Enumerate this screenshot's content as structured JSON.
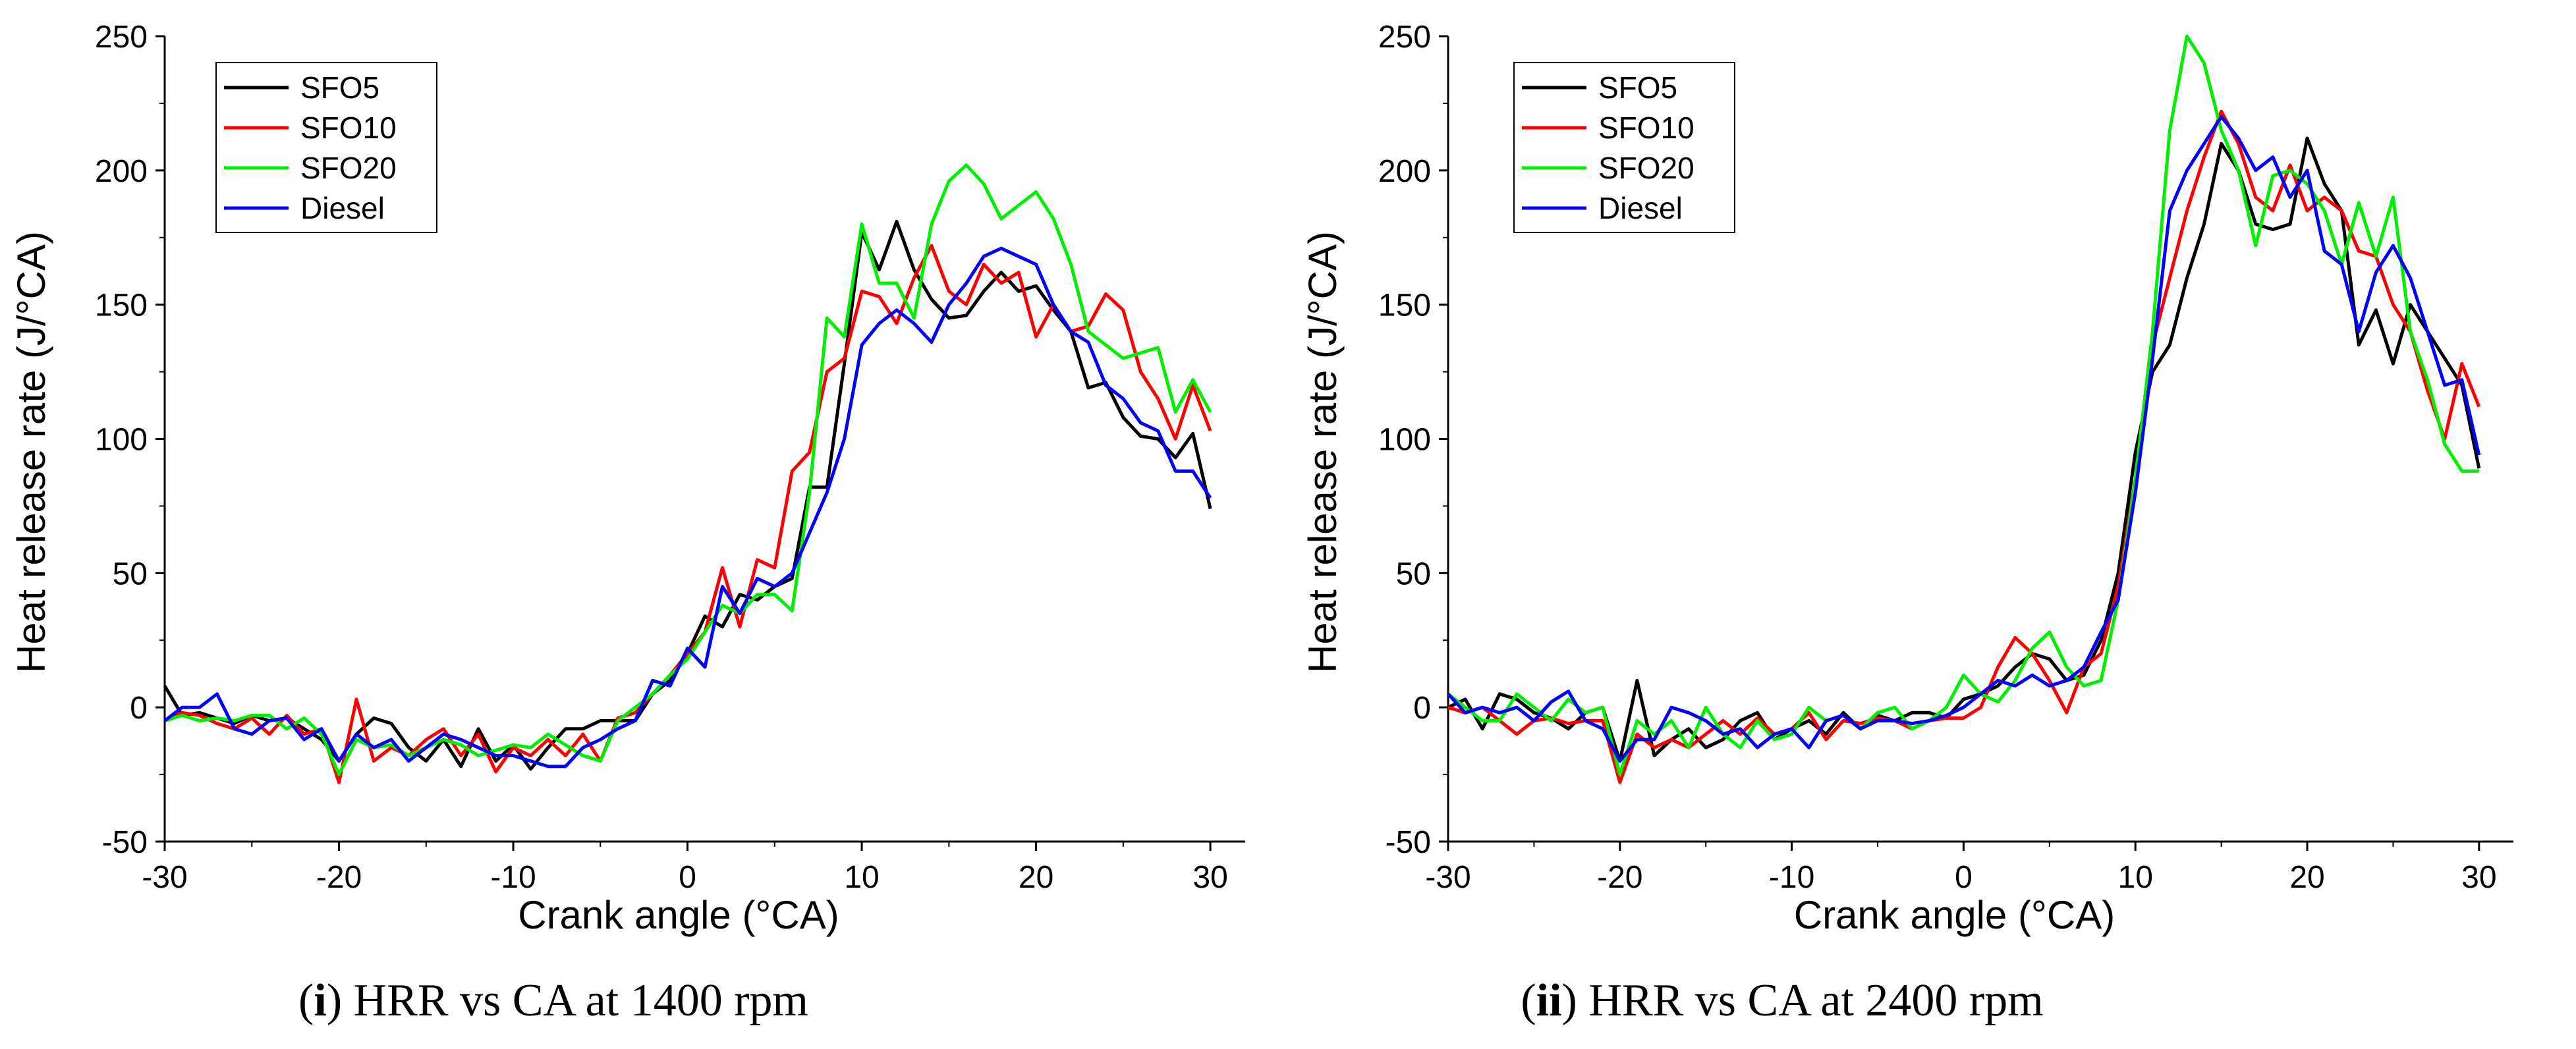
{
  "chart_data": [
    {
      "type": "line",
      "caption": {
        "label": "i",
        "text": ") HRR vs CA at 1400 rpm"
      },
      "xlabel": "Crank angle (°CA)",
      "ylabel": "Heat release rate (J/°CA)",
      "xlim": [
        -30,
        32
      ],
      "ylim": [
        -50,
        250
      ],
      "xticks": [
        -30,
        -20,
        -10,
        0,
        10,
        20,
        30
      ],
      "yticks": [
        -50,
        0,
        50,
        100,
        150,
        200,
        250
      ],
      "legend_position": "top-left",
      "series": [
        {
          "name": "SFO5",
          "color": "#000000",
          "x": [
            -30,
            -29,
            -28,
            -27,
            -26,
            -25,
            -24,
            -23,
            -22,
            -21,
            -20,
            -19,
            -18,
            -17,
            -16,
            -15,
            -14,
            -13,
            -12,
            -11,
            -10,
            -9,
            -8,
            -7,
            -6,
            -5,
            -4,
            -3,
            -2,
            -1,
            0,
            1,
            2,
            3,
            4,
            5,
            6,
            7,
            8,
            9,
            10,
            11,
            12,
            13,
            14,
            15,
            16,
            17,
            18,
            19,
            20,
            21,
            22,
            23,
            24,
            25,
            26,
            27,
            28,
            29,
            30
          ],
          "y": [
            8,
            -3,
            -2,
            -4,
            -6,
            -3,
            -5,
            -4,
            -8,
            -12,
            -20,
            -10,
            -4,
            -6,
            -15,
            -20,
            -12,
            -22,
            -8,
            -20,
            -14,
            -23,
            -15,
            -8,
            -8,
            -5,
            -5,
            -5,
            5,
            10,
            20,
            34,
            30,
            42,
            40,
            45,
            48,
            82,
            82,
            128,
            177,
            163,
            181,
            163,
            152,
            145,
            146,
            155,
            162,
            155,
            157,
            148,
            140,
            119,
            121,
            108,
            101,
            100,
            93,
            102,
            74
          ]
        },
        {
          "name": "SFO10",
          "color": "#ff0000",
          "x": [
            -30,
            -29,
            -28,
            -27,
            -26,
            -25,
            -24,
            -23,
            -22,
            -21,
            -20,
            -19,
            -18,
            -17,
            -16,
            -15,
            -14,
            -13,
            -12,
            -11,
            -10,
            -9,
            -8,
            -7,
            -6,
            -5,
            -4,
            -3,
            -2,
            -1,
            0,
            1,
            2,
            3,
            4,
            5,
            6,
            7,
            8,
            9,
            10,
            11,
            12,
            13,
            14,
            15,
            16,
            17,
            18,
            19,
            20,
            21,
            22,
            23,
            24,
            25,
            26,
            27,
            28,
            29,
            30
          ],
          "y": [
            -5,
            -2,
            -3,
            -6,
            -8,
            -4,
            -10,
            -3,
            -10,
            -8,
            -28,
            3,
            -20,
            -15,
            -18,
            -12,
            -8,
            -18,
            -10,
            -24,
            -15,
            -18,
            -12,
            -18,
            -10,
            -20,
            -4,
            -2,
            5,
            12,
            20,
            28,
            52,
            30,
            55,
            52,
            88,
            95,
            125,
            130,
            155,
            153,
            143,
            160,
            172,
            155,
            150,
            165,
            158,
            162,
            138,
            150,
            140,
            142,
            154,
            148,
            125,
            115,
            100,
            120,
            103
          ]
        },
        {
          "name": "SFO20",
          "color": "#00ee00",
          "x": [
            -30,
            -29,
            -28,
            -27,
            -26,
            -25,
            -24,
            -23,
            -22,
            -21,
            -20,
            -19,
            -18,
            -17,
            -16,
            -15,
            -14,
            -13,
            -12,
            -11,
            -10,
            -9,
            -8,
            -7,
            -6,
            -5,
            -4,
            -3,
            -2,
            -1,
            0,
            1,
            2,
            3,
            4,
            5,
            6,
            7,
            8,
            9,
            10,
            11,
            12,
            13,
            14,
            15,
            16,
            17,
            18,
            19,
            20,
            21,
            22,
            23,
            24,
            25,
            26,
            27,
            28,
            29,
            30
          ],
          "y": [
            -5,
            -3,
            -5,
            -4,
            -5,
            -3,
            -3,
            -8,
            -4,
            -10,
            -25,
            -12,
            -15,
            -14,
            -18,
            -15,
            -12,
            -14,
            -18,
            -16,
            -14,
            -15,
            -10,
            -14,
            -18,
            -20,
            -5,
            0,
            5,
            12,
            18,
            28,
            38,
            35,
            42,
            42,
            36,
            80,
            145,
            138,
            180,
            158,
            158,
            145,
            180,
            196,
            202,
            195,
            182,
            187,
            192,
            182,
            165,
            140,
            135,
            130,
            132,
            134,
            110,
            122,
            110
          ]
        },
        {
          "name": "Diesel",
          "color": "#0000ff",
          "x": [
            -30,
            -29,
            -28,
            -27,
            -26,
            -25,
            -24,
            -23,
            -22,
            -21,
            -20,
            -19,
            -18,
            -17,
            -16,
            -15,
            -14,
            -13,
            -12,
            -11,
            -10,
            -9,
            -8,
            -7,
            -6,
            -5,
            -4,
            -3,
            -2,
            -1,
            0,
            1,
            2,
            3,
            4,
            5,
            6,
            7,
            8,
            9,
            10,
            11,
            12,
            13,
            14,
            15,
            16,
            17,
            18,
            19,
            20,
            21,
            22,
            23,
            24,
            25,
            26,
            27,
            28,
            29,
            30
          ],
          "y": [
            -5,
            0,
            0,
            5,
            -8,
            -10,
            -5,
            -4,
            -12,
            -8,
            -20,
            -10,
            -15,
            -12,
            -20,
            -15,
            -10,
            -12,
            -15,
            -18,
            -18,
            -20,
            -22,
            -22,
            -15,
            -12,
            -8,
            -5,
            10,
            8,
            22,
            15,
            45,
            35,
            48,
            45,
            50,
            65,
            80,
            100,
            135,
            143,
            148,
            143,
            136,
            150,
            158,
            168,
            171,
            168,
            165,
            150,
            140,
            136,
            120,
            115,
            106,
            103,
            88,
            88,
            78
          ]
        }
      ]
    },
    {
      "type": "line",
      "caption": {
        "label": "ii",
        "text": ") HRR vs CA at 2400 rpm"
      },
      "xlabel": "Crank angle (°CA)",
      "ylabel": "Heat release rate (J/°CA)",
      "xlim": [
        -30,
        32
      ],
      "ylim": [
        -50,
        250
      ],
      "xticks": [
        -30,
        -20,
        -10,
        0,
        10,
        20,
        30
      ],
      "yticks": [
        -50,
        0,
        50,
        100,
        150,
        200,
        250
      ],
      "legend_position": "top-left",
      "series": [
        {
          "name": "SFO5",
          "color": "#000000",
          "x": [
            -30,
            -29,
            -28,
            -27,
            -26,
            -25,
            -24,
            -23,
            -22,
            -21,
            -20,
            -19,
            -18,
            -17,
            -16,
            -15,
            -14,
            -13,
            -12,
            -11,
            -10,
            -9,
            -8,
            -7,
            -6,
            -5,
            -4,
            -3,
            -2,
            -1,
            0,
            1,
            2,
            3,
            4,
            5,
            6,
            7,
            8,
            9,
            10,
            11,
            12,
            13,
            14,
            15,
            16,
            17,
            18,
            19,
            20,
            21,
            22,
            23,
            24,
            25,
            26,
            27,
            28,
            29,
            30
          ],
          "y": [
            0,
            3,
            -8,
            5,
            3,
            -2,
            -4,
            -8,
            -2,
            0,
            -20,
            10,
            -18,
            -12,
            -8,
            -15,
            -12,
            -5,
            -2,
            -12,
            -8,
            -5,
            -10,
            -2,
            -8,
            -3,
            -5,
            -2,
            -2,
            -4,
            3,
            5,
            8,
            15,
            20,
            18,
            10,
            12,
            25,
            50,
            95,
            125,
            135,
            160,
            180,
            210,
            200,
            180,
            178,
            180,
            212,
            195,
            185,
            135,
            148,
            128,
            150,
            140,
            130,
            120,
            89
          ]
        },
        {
          "name": "SFO10",
          "color": "#ff0000",
          "x": [
            -30,
            -29,
            -28,
            -27,
            -26,
            -25,
            -24,
            -23,
            -22,
            -21,
            -20,
            -19,
            -18,
            -17,
            -16,
            -15,
            -14,
            -13,
            -12,
            -11,
            -10,
            -9,
            -8,
            -7,
            -6,
            -5,
            -4,
            -3,
            -2,
            -1,
            0,
            1,
            2,
            3,
            4,
            5,
            6,
            7,
            8,
            9,
            10,
            11,
            12,
            13,
            14,
            15,
            16,
            17,
            18,
            19,
            20,
            21,
            22,
            23,
            24,
            25,
            26,
            27,
            28,
            29,
            30
          ],
          "y": [
            0,
            -2,
            0,
            -5,
            -10,
            -5,
            -4,
            -6,
            -5,
            -5,
            -28,
            -10,
            -15,
            -12,
            -15,
            -10,
            -5,
            -10,
            -4,
            -10,
            -8,
            -2,
            -12,
            -5,
            -6,
            -4,
            -5,
            -8,
            -5,
            -4,
            -4,
            0,
            15,
            26,
            20,
            10,
            -2,
            15,
            20,
            45,
            85,
            135,
            160,
            185,
            205,
            222,
            210,
            190,
            185,
            202,
            185,
            190,
            185,
            170,
            168,
            150,
            140,
            118,
            100,
            128,
            112
          ]
        },
        {
          "name": "SFO20",
          "color": "#00ee00",
          "x": [
            -30,
            -29,
            -28,
            -27,
            -26,
            -25,
            -24,
            -23,
            -22,
            -21,
            -20,
            -19,
            -18,
            -17,
            -16,
            -15,
            -14,
            -13,
            -12,
            -11,
            -10,
            -9,
            -8,
            -7,
            -6,
            -5,
            -4,
            -3,
            -2,
            -1,
            0,
            1,
            2,
            3,
            4,
            5,
            6,
            7,
            8,
            9,
            10,
            11,
            12,
            13,
            14,
            15,
            16,
            17,
            18,
            19,
            20,
            21,
            22,
            23,
            24,
            25,
            26,
            27,
            28,
            29,
            30
          ],
          "y": [
            5,
            0,
            -5,
            -5,
            5,
            0,
            -5,
            3,
            -2,
            0,
            -25,
            -5,
            -10,
            -5,
            -15,
            0,
            -10,
            -15,
            -5,
            -12,
            -10,
            0,
            -5,
            -3,
            -8,
            -2,
            0,
            -8,
            -5,
            0,
            12,
            5,
            2,
            10,
            22,
            28,
            15,
            8,
            10,
            40,
            85,
            140,
            215,
            250,
            240,
            215,
            200,
            172,
            198,
            200,
            195,
            185,
            165,
            188,
            168,
            190,
            140,
            122,
            98,
            88,
            88
          ]
        },
        {
          "name": "Diesel",
          "color": "#0000ff",
          "x": [
            -30,
            -29,
            -28,
            -27,
            -26,
            -25,
            -24,
            -23,
            -22,
            -21,
            -20,
            -19,
            -18,
            -17,
            -16,
            -15,
            -14,
            -13,
            -12,
            -11,
            -10,
            -9,
            -8,
            -7,
            -6,
            -5,
            -4,
            -3,
            -2,
            -1,
            0,
            1,
            2,
            3,
            4,
            5,
            6,
            7,
            8,
            9,
            10,
            11,
            12,
            13,
            14,
            15,
            16,
            17,
            18,
            19,
            20,
            21,
            22,
            23,
            24,
            25,
            26,
            27,
            28,
            29,
            30
          ],
          "y": [
            5,
            -2,
            0,
            -2,
            0,
            -5,
            2,
            6,
            -5,
            -8,
            -20,
            -12,
            -12,
            0,
            -2,
            -5,
            -10,
            -8,
            -15,
            -10,
            -8,
            -15,
            -5,
            -3,
            -8,
            -5,
            -5,
            -6,
            -5,
            -3,
            0,
            5,
            10,
            8,
            12,
            8,
            10,
            15,
            28,
            40,
            80,
            130,
            185,
            200,
            210,
            220,
            212,
            200,
            205,
            190,
            200,
            170,
            165,
            140,
            162,
            172,
            160,
            140,
            120,
            122,
            94
          ]
        }
      ]
    }
  ]
}
